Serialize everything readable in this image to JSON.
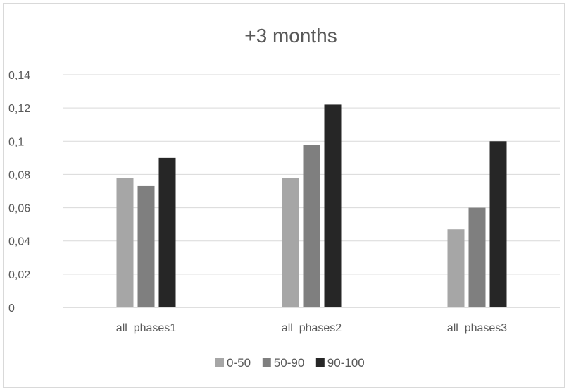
{
  "chart_data": {
    "type": "bar",
    "title": "+3 months",
    "categories": [
      "all_phases1",
      "all_phases2",
      "all_phases3"
    ],
    "series": [
      {
        "name": "0-50",
        "values": [
          0.078,
          0.078,
          0.047
        ]
      },
      {
        "name": "50-90",
        "values": [
          0.073,
          0.098,
          0.06
        ]
      },
      {
        "name": "90-100",
        "values": [
          0.09,
          0.122,
          0.1
        ]
      }
    ],
    "ylim": [
      0,
      0.14
    ],
    "yticks": [
      "0",
      "0,02",
      "0,04",
      "0,06",
      "0,08",
      "0,1",
      "0,12",
      "0,14"
    ],
    "xlabel": "",
    "ylabel": "",
    "grid": true,
    "legend_position": "bottom",
    "colors": [
      "#a6a6a6",
      "#7f7f7f",
      "#262626"
    ]
  }
}
